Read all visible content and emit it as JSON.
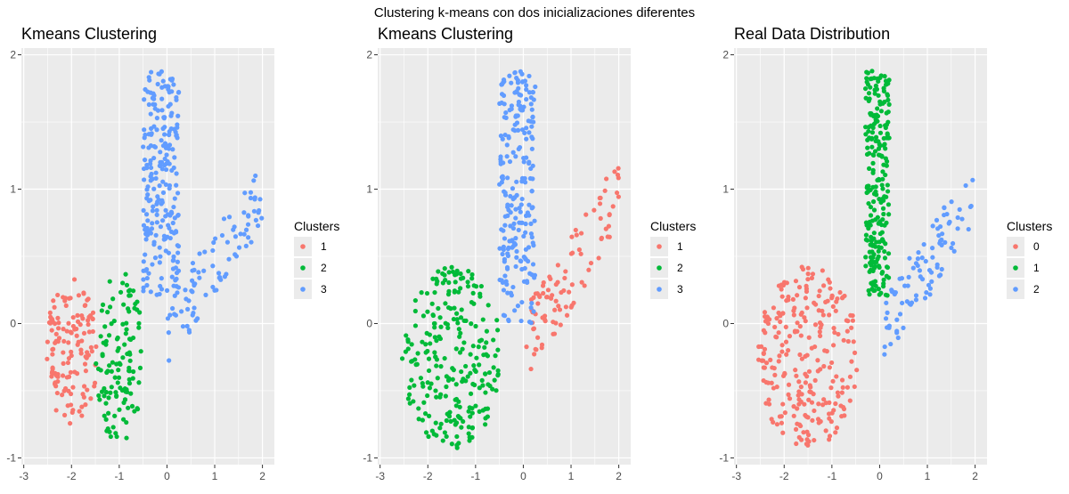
{
  "figure": {
    "suptitle": "Clustering k-means con dos inicializaciones diferentes",
    "colors": {
      "panel_bg": "#EBEBEB",
      "grid": "#FFFFFF",
      "c1": "#F8766D",
      "c2": "#00BA38",
      "c3": "#619CFF"
    }
  },
  "chart_data": [
    {
      "type": "scatter",
      "title": "Kmeans Clustering",
      "xlim": [
        -3.05,
        2.25
      ],
      "ylim": [
        -1.05,
        2.05
      ],
      "x_ticks": [
        -3,
        -2,
        -1,
        0,
        1,
        2
      ],
      "y_ticks": [
        -1,
        0,
        1,
        2
      ],
      "grid": true,
      "legend": {
        "title": "Clusters",
        "position": "right",
        "labels": [
          "1",
          "2",
          "3"
        ]
      },
      "series": [
        {
          "name": "1",
          "color": "#F8766D",
          "regions": [
            {
              "shape": "ellipse",
              "cx": -2.0,
              "cy": -0.2,
              "rx": 0.55,
              "ry": 0.55,
              "n": 135,
              "seed": 11
            }
          ]
        },
        {
          "name": "2",
          "color": "#00BA38",
          "regions": [
            {
              "shape": "ellipse",
              "cx": -1.0,
              "cy": -0.25,
              "rx": 0.5,
              "ry": 0.65,
              "n": 120,
              "seed": 23
            }
          ]
        },
        {
          "name": "3",
          "color": "#619CFF",
          "regions": [
            {
              "shape": "rect",
              "x0": -0.5,
              "x1": 0.25,
              "y0": 0.2,
              "y1": 1.88,
              "n": 230,
              "seed": 37
            },
            {
              "shape": "band",
              "x0": 0.0,
              "x1": 2.0,
              "y_at_x0": -0.05,
              "y_at_x1": 0.95,
              "halfwidth": 0.25,
              "n": 85,
              "seed": 41
            }
          ]
        }
      ]
    },
    {
      "type": "scatter",
      "title": "Kmeans Clustering",
      "xlim": [
        -3.05,
        2.25
      ],
      "ylim": [
        -1.05,
        2.05
      ],
      "x_ticks": [
        -3,
        -2,
        -1,
        0,
        1,
        2
      ],
      "y_ticks": [
        -1,
        0,
        1,
        2
      ],
      "grid": true,
      "legend": {
        "title": "Clusters",
        "position": "right",
        "labels": [
          "1",
          "2",
          "3"
        ]
      },
      "series": [
        {
          "name": "1",
          "color": "#F8766D",
          "regions": [
            {
              "shape": "band",
              "x0": 0.05,
              "x1": 2.0,
              "y_at_x0": -0.15,
              "y_at_x1": 0.95,
              "halfwidth": 0.28,
              "n": 95,
              "seed": 53
            }
          ]
        },
        {
          "name": "2",
          "color": "#00BA38",
          "regions": [
            {
              "shape": "ellipse",
              "cx": -1.5,
              "cy": -0.25,
              "rx": 1.05,
              "ry": 0.68,
              "n": 255,
              "seed": 61
            }
          ]
        },
        {
          "name": "3",
          "color": "#619CFF",
          "regions": [
            {
              "shape": "rect",
              "x0": -0.5,
              "x1": 0.25,
              "y0": 0.0,
              "y1": 1.88,
              "n": 230,
              "seed": 73
            }
          ]
        }
      ]
    },
    {
      "type": "scatter",
      "title": "Real Data Distribution",
      "xlim": [
        -3.05,
        2.25
      ],
      "ylim": [
        -1.05,
        2.05
      ],
      "x_ticks": [
        -3,
        -2,
        -1,
        0,
        1,
        2
      ],
      "y_ticks": [
        -1,
        0,
        1,
        2
      ],
      "grid": true,
      "legend": {
        "title": "Clusters",
        "position": "right",
        "labels": [
          "0",
          "1",
          "2"
        ]
      },
      "series": [
        {
          "name": "0",
          "color": "#F8766D",
          "regions": [
            {
              "shape": "ellipse",
              "cx": -1.5,
              "cy": -0.25,
              "rx": 1.05,
              "ry": 0.68,
              "n": 255,
              "seed": 83
            }
          ]
        },
        {
          "name": "1",
          "color": "#00BA38",
          "regions": [
            {
              "shape": "rect",
              "x0": -0.3,
              "x1": 0.2,
              "y0": 0.2,
              "y1": 1.88,
              "n": 230,
              "seed": 97
            }
          ]
        },
        {
          "name": "2",
          "color": "#619CFF",
          "regions": [
            {
              "shape": "band",
              "x0": 0.05,
              "x1": 2.0,
              "y_at_x0": -0.05,
              "y_at_x1": 0.95,
              "halfwidth": 0.25,
              "n": 90,
              "seed": 101
            }
          ]
        }
      ]
    }
  ]
}
